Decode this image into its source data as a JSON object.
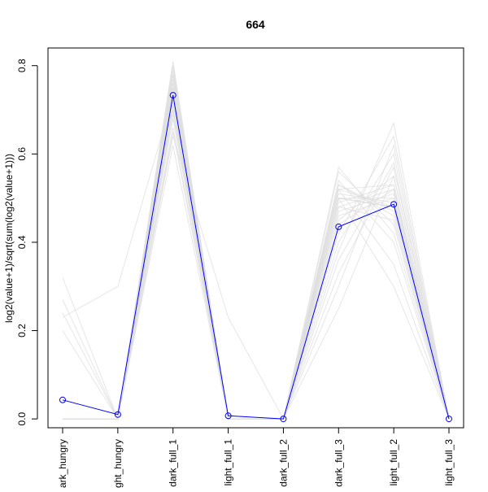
{
  "chart_data": {
    "type": "line",
    "title": "664",
    "xlabel": "",
    "ylabel": "log2(value+1)/sqrt(sum(log2(value+1)))",
    "categories": [
      "dark_hungry",
      "light_hungry",
      "dark_full_1",
      "light_full_1",
      "dark_full_2",
      "dark_full_3",
      "light_full_2",
      "light_full_3"
    ],
    "category_labels_visible": [
      "dark_hungry",
      "ght_hungry",
      "dark_full_1",
      "light_full_1",
      "dark_full_2",
      "dark_full_3",
      "light_full_2",
      "light_full_3"
    ],
    "yticks": [
      "0.0",
      "0.2",
      "0.4",
      "0.6",
      "0.8"
    ],
    "ylim": [
      -0.02,
      0.84
    ],
    "grid": false,
    "highlight_series": {
      "color": "#0000ff",
      "values": [
        0.043,
        0.01,
        0.733,
        0.007,
        0.0,
        0.435,
        0.486,
        0.0
      ]
    },
    "background_series_color": "#dddddd",
    "background_series": [
      [
        0.0,
        0.0,
        0.78,
        0.0,
        0.0,
        0.52,
        0.48,
        0.0
      ],
      [
        0.0,
        0.0,
        0.75,
        0.0,
        0.0,
        0.5,
        0.5,
        0.0
      ],
      [
        0.0,
        0.0,
        0.8,
        0.0,
        0.0,
        0.48,
        0.52,
        0.0
      ],
      [
        0.0,
        0.0,
        0.72,
        0.0,
        0.0,
        0.53,
        0.46,
        0.0
      ],
      [
        0.0,
        0.0,
        0.7,
        0.0,
        0.0,
        0.45,
        0.55,
        0.0
      ],
      [
        0.0,
        0.0,
        0.76,
        0.0,
        0.0,
        0.57,
        0.42,
        0.0
      ],
      [
        0.0,
        0.0,
        0.74,
        0.0,
        0.0,
        0.49,
        0.53,
        0.0
      ],
      [
        0.0,
        0.0,
        0.79,
        0.0,
        0.0,
        0.51,
        0.49,
        0.0
      ],
      [
        0.0,
        0.0,
        0.73,
        0.0,
        0.0,
        0.5,
        0.48,
        0.0
      ],
      [
        0.0,
        0.0,
        0.68,
        0.0,
        0.0,
        0.4,
        0.6,
        0.0
      ],
      [
        0.0,
        0.0,
        0.65,
        0.0,
        0.0,
        0.42,
        0.64,
        0.0
      ],
      [
        0.0,
        0.0,
        0.62,
        0.0,
        0.0,
        0.38,
        0.67,
        0.0
      ],
      [
        0.0,
        0.0,
        0.81,
        0.0,
        0.0,
        0.47,
        0.51,
        0.0
      ],
      [
        0.0,
        0.0,
        0.77,
        0.0,
        0.0,
        0.36,
        0.58,
        0.0
      ],
      [
        0.0,
        0.0,
        0.71,
        0.0,
        0.0,
        0.3,
        0.62,
        0.0
      ],
      [
        0.0,
        0.0,
        0.74,
        0.0,
        0.0,
        0.25,
        0.55,
        0.0
      ],
      [
        0.0,
        0.0,
        0.78,
        0.0,
        0.0,
        0.54,
        0.4,
        0.0
      ],
      [
        0.0,
        0.0,
        0.66,
        0.0,
        0.0,
        0.52,
        0.35,
        0.0
      ],
      [
        0.0,
        0.0,
        0.8,
        0.0,
        0.0,
        0.5,
        0.3,
        0.0
      ],
      [
        0.32,
        0.0,
        0.74,
        0.0,
        0.0,
        0.48,
        0.45,
        0.0
      ],
      [
        0.27,
        0.0,
        0.7,
        0.0,
        0.0,
        0.44,
        0.52,
        0.0
      ],
      [
        0.24,
        0.0,
        0.76,
        0.0,
        0.0,
        0.5,
        0.48,
        0.0
      ],
      [
        0.2,
        0.0,
        0.72,
        0.0,
        0.0,
        0.53,
        0.47,
        0.0
      ],
      [
        0.23,
        0.3,
        0.73,
        0.0,
        0.0,
        0.46,
        0.5,
        0.0
      ],
      [
        0.0,
        0.0,
        0.64,
        0.23,
        0.0,
        0.5,
        0.48,
        0.0
      ],
      [
        0.0,
        0.0,
        0.69,
        0.0,
        0.0,
        0.56,
        0.44,
        0.0
      ],
      [
        0.0,
        0.0,
        0.78,
        0.0,
        0.0,
        0.33,
        0.57,
        0.0
      ],
      [
        0.0,
        0.0,
        0.75,
        0.0,
        0.0,
        0.52,
        0.53,
        0.0
      ]
    ]
  }
}
